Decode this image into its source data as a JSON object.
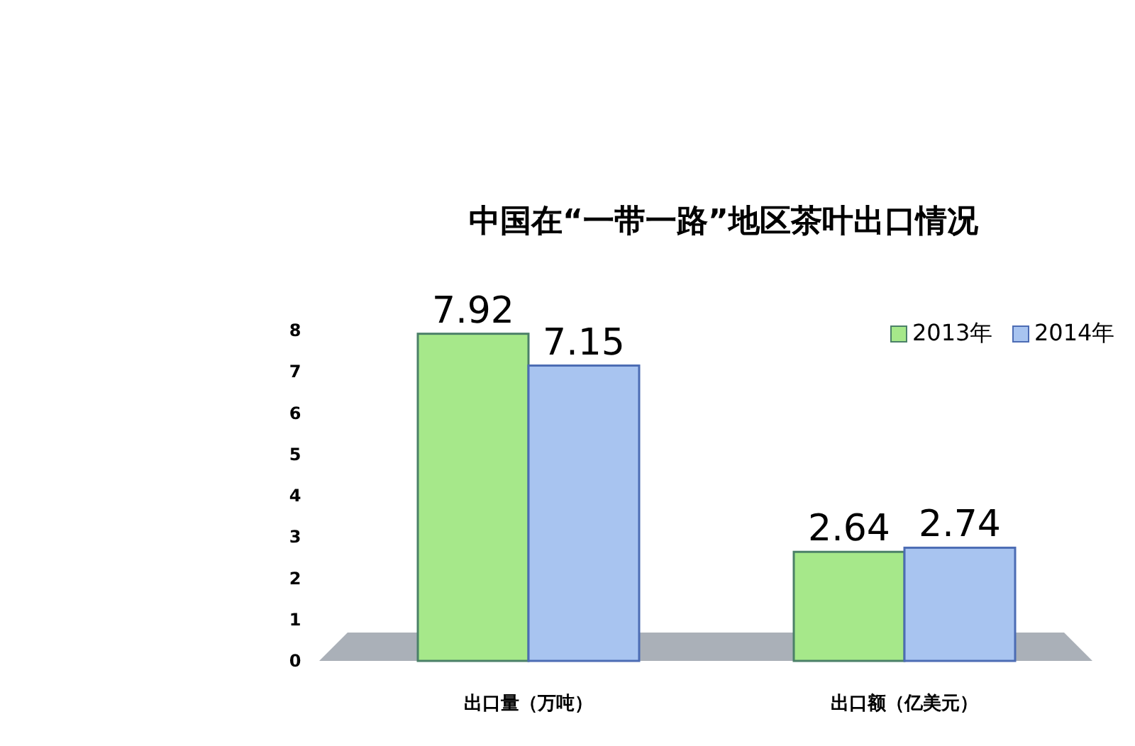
{
  "chart_data": {
    "type": "bar",
    "title": "中国在“一带一路”地区茶叶出口情况",
    "categories": [
      "出口量（万吨）",
      "出口额（亿美元）"
    ],
    "series": [
      {
        "name": "2013年",
        "color": "#a6e88a",
        "values": [
          7.92,
          2.64
        ]
      },
      {
        "name": "2014年",
        "color": "#a8c4f0",
        "values": [
          7.15,
          2.74
        ]
      }
    ],
    "ylim": [
      0,
      8
    ],
    "yticks": [
      0,
      1,
      2,
      3,
      4,
      5,
      6,
      7,
      8
    ],
    "data_labels": true,
    "legend": "top right"
  }
}
